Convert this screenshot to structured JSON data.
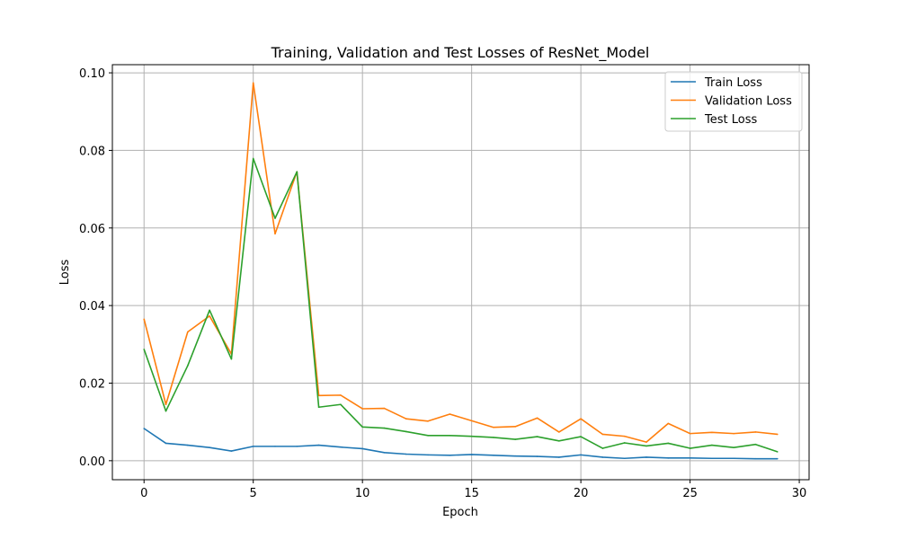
{
  "chart_data": {
    "type": "line",
    "title": "Training, Validation and Test Losses of ResNet_Model",
    "xlabel": "Epoch",
    "ylabel": "Loss",
    "xlim": [
      -1.45,
      30.45
    ],
    "ylim": [
      -0.0049,
      0.1021
    ],
    "xticks": [
      0,
      5,
      10,
      15,
      20,
      25,
      30
    ],
    "yticks": [
      0.0,
      0.02,
      0.04,
      0.06,
      0.08,
      0.1
    ],
    "ytick_labels": [
      "0.00",
      "0.02",
      "0.04",
      "0.06",
      "0.08",
      "0.10"
    ],
    "grid": true,
    "legend_position": "top-right",
    "x": [
      0,
      1,
      2,
      3,
      4,
      5,
      6,
      7,
      8,
      9,
      10,
      11,
      12,
      13,
      14,
      15,
      16,
      17,
      18,
      19,
      20,
      21,
      22,
      23,
      24,
      25,
      26,
      27,
      28,
      29
    ],
    "series": [
      {
        "name": "Train Loss",
        "color": "#1f77b4",
        "values": [
          0.0083,
          0.0045,
          0.004,
          0.0034,
          0.0025,
          0.0037,
          0.0037,
          0.0037,
          0.004,
          0.0035,
          0.0031,
          0.0021,
          0.0017,
          0.0015,
          0.0014,
          0.0016,
          0.0014,
          0.0012,
          0.0011,
          0.0009,
          0.0015,
          0.0009,
          0.0006,
          0.0009,
          0.0007,
          0.0007,
          0.0006,
          0.0006,
          0.0005,
          0.0005
        ]
      },
      {
        "name": "Validation Loss",
        "color": "#ff7f0e",
        "values": [
          0.0365,
          0.0145,
          0.0332,
          0.0373,
          0.0275,
          0.0974,
          0.0585,
          0.0745,
          0.0168,
          0.0169,
          0.0134,
          0.0135,
          0.0108,
          0.0102,
          0.012,
          0.0103,
          0.0086,
          0.0088,
          0.011,
          0.0074,
          0.0108,
          0.0068,
          0.0063,
          0.0048,
          0.0096,
          0.007,
          0.0073,
          0.007,
          0.0074,
          0.0068
        ]
      },
      {
        "name": "Test Loss",
        "color": "#2ca02c",
        "values": [
          0.0287,
          0.0128,
          0.0245,
          0.0388,
          0.0262,
          0.0779,
          0.0625,
          0.0745,
          0.0138,
          0.0145,
          0.0087,
          0.0084,
          0.0075,
          0.0065,
          0.0065,
          0.0063,
          0.006,
          0.0055,
          0.0062,
          0.0051,
          0.0062,
          0.0032,
          0.0046,
          0.0038,
          0.0045,
          0.0032,
          0.004,
          0.0034,
          0.0042,
          0.0023
        ]
      }
    ]
  }
}
